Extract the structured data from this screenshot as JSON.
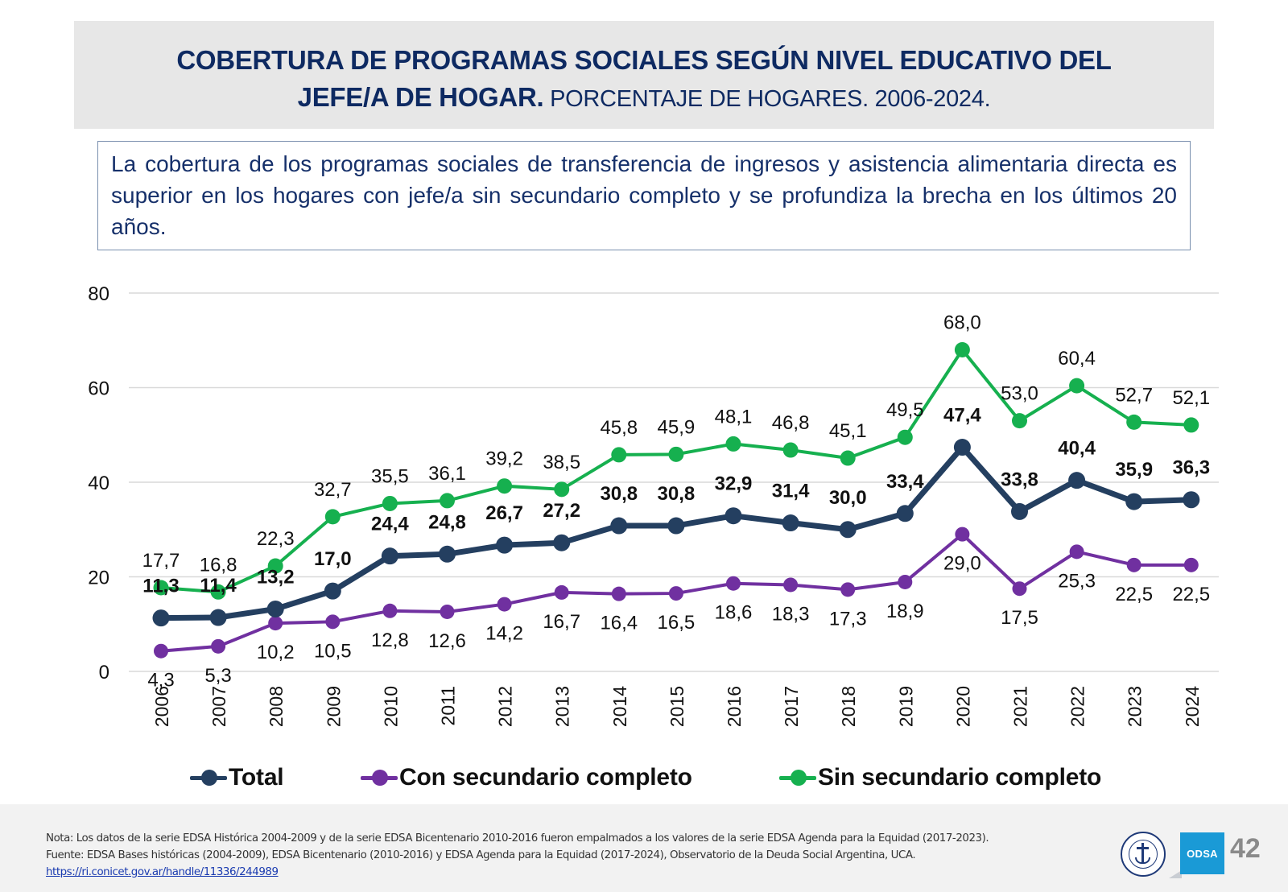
{
  "header": {
    "title_bold_line1": "COBERTURA DE PROGRAMAS SOCIALES SEGÚN NIVEL EDUCATIVO DEL",
    "title_bold_line2": "JEFE/A DE HOGAR.",
    "title_normal_line2": " PORCENTAJE DE HOGARES. 2006-2024."
  },
  "summary": {
    "text": "La cobertura de los programas sociales de transferencia de ingresos y asistencia alimentaria directa es superior en los hogares con jefe/a sin secundario completo y se profundiza la brecha en los últimos 20 años."
  },
  "colors": {
    "title_text": "#0e2a62",
    "total": "#243f60",
    "con_secundario": "#7030a0",
    "sin_secundario": "#16b04f",
    "gridline": "#d9d9d9"
  },
  "chart_data": {
    "type": "line",
    "title": "Cobertura de programas sociales según nivel educativo del jefe/a de hogar. Porcentaje de hogares. 2006-2024.",
    "xlabel": "",
    "ylabel": "",
    "ylim": [
      0,
      80
    ],
    "yticks": [
      "0",
      "20",
      "40",
      "60",
      "80"
    ],
    "grid": true,
    "legend_position": "bottom",
    "x": [
      "2006",
      "2007",
      "2008",
      "2009",
      "2010",
      "2011",
      "2012",
      "2013",
      "2014",
      "2015",
      "2016",
      "2017",
      "2018",
      "2019",
      "2020",
      "2021",
      "2022",
      "2023",
      "2024"
    ],
    "series": [
      {
        "name": "Total",
        "key": "total",
        "bold_labels": true,
        "values": [
          11.3,
          11.4,
          13.2,
          17.0,
          24.4,
          24.8,
          26.7,
          27.2,
          30.8,
          30.8,
          32.9,
          31.4,
          30.0,
          33.4,
          47.4,
          33.8,
          40.4,
          35.9,
          36.3
        ],
        "labels": [
          "11,3",
          "11,4",
          "13,2",
          "17,0",
          "24,4",
          "24,8",
          "26,7",
          "27,2",
          "30,8",
          "30,8",
          "32,9",
          "31,4",
          "30,0",
          "33,4",
          "47,4",
          "33,8",
          "40,4",
          "35,9",
          "36,3"
        ]
      },
      {
        "name": "Con secundario completo",
        "key": "con_secundario",
        "bold_labels": false,
        "values": [
          4.3,
          5.3,
          10.2,
          10.5,
          12.8,
          12.6,
          14.2,
          16.7,
          16.4,
          16.5,
          18.6,
          18.3,
          17.3,
          18.9,
          29.0,
          17.5,
          25.3,
          22.5,
          22.5
        ],
        "labels": [
          "4,3",
          "5,3",
          "10,2",
          "10,5",
          "12,8",
          "12,6",
          "14,2",
          "16,7",
          "16,4",
          "16,5",
          "18,6",
          "18,3",
          "17,3",
          "18,9",
          "29,0",
          "17,5",
          "25,3",
          "22,5",
          "22,5"
        ]
      },
      {
        "name": "Sin secundario completo",
        "key": "sin_secundario",
        "bold_labels": false,
        "values": [
          17.7,
          16.8,
          22.3,
          32.7,
          35.5,
          36.1,
          39.2,
          38.5,
          45.8,
          45.9,
          48.1,
          46.8,
          45.1,
          49.5,
          68.0,
          53.0,
          60.4,
          52.7,
          52.1
        ],
        "labels": [
          "17,7",
          "16,8",
          "22,3",
          "32,7",
          "35,5",
          "36,1",
          "39,2",
          "38,5",
          "45,8",
          "45,9",
          "48,1",
          "46,8",
          "45,1",
          "49,5",
          "68,0",
          "53,0",
          "60,4",
          "52,7",
          "52,1"
        ]
      }
    ]
  },
  "legend": {
    "items": [
      {
        "label": "Total",
        "key": "total"
      },
      {
        "label": "Con secundario completo",
        "key": "con_secundario"
      },
      {
        "label": "Sin secundario completo",
        "key": "sin_secundario"
      }
    ]
  },
  "footer": {
    "note": "Nota: Los datos de la serie EDSA Histórica 2004-2009 y de la serie EDSA Bicentenario 2010-2016 fueron empalmados a los valores de la serie EDSA Agenda para la Equidad (2017-2023).",
    "source": "Fuente: EDSA Bases históricas (2004-2009), EDSA Bicentenario (2010-2016) y EDSA Agenda para la Equidad (2017-2024), Observatorio de la Deuda Social Argentina, UCA.",
    "link": "https://ri.conicet.gov.ar/handle/11336/244989",
    "odsa_logo_text": "ODSA",
    "page_number": "42"
  }
}
